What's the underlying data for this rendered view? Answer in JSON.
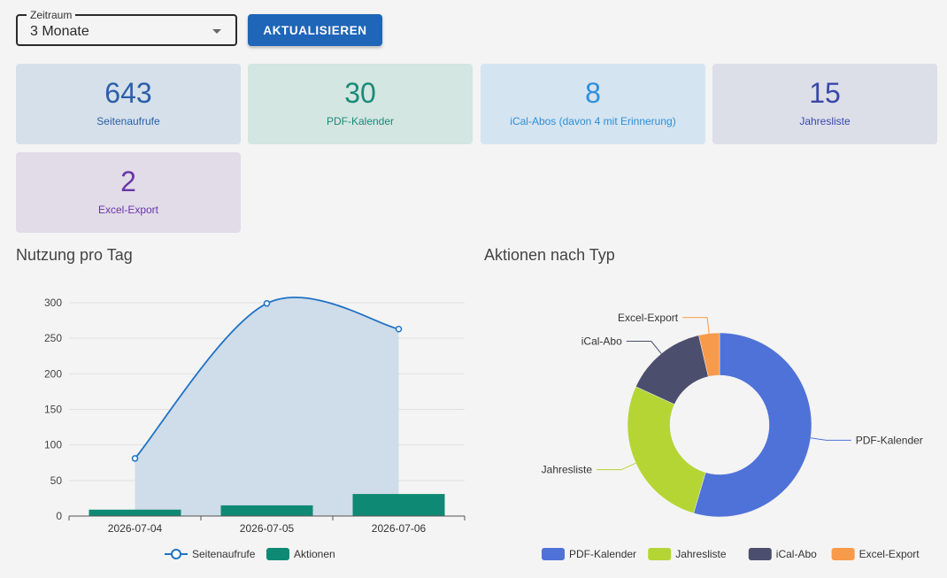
{
  "filter": {
    "legend": "Zeitraum",
    "value": "3 Monate",
    "refresh_label": "AKTUALISIEREN"
  },
  "stats": [
    {
      "value": "643",
      "label": "Seitenaufrufe",
      "color": "#2a5fa8",
      "bg": "#d6e0ea"
    },
    {
      "value": "30",
      "label": "PDF-Kalender",
      "color": "#1a8a78",
      "bg": "#d3e6e1"
    },
    {
      "value": "8",
      "label": "iCal-Abos (davon 4 mit Erinnerung)",
      "color": "#2d8fd8",
      "bg": "#d4e4f1"
    },
    {
      "value": "15",
      "label": "Jahresliste",
      "color": "#3a48a8",
      "bg": "#dcdfe8"
    },
    {
      "value": "2",
      "label": "Excel-Export",
      "color": "#6a35a8",
      "bg": "#e1dce8"
    }
  ],
  "daily_title": "Nutzung pro Tag",
  "type_title": "Aktionen nach Typ",
  "chart_data": [
    {
      "type": "line",
      "title": "Nutzung pro Tag",
      "categories": [
        "2026-07-04",
        "2026-07-05",
        "2026-07-06"
      ],
      "ylim": [
        0,
        300
      ],
      "yticks": [
        0,
        50,
        100,
        150,
        200,
        250,
        300
      ],
      "grid": true,
      "legend_position": "bottom",
      "series": [
        {
          "name": "Seitenaufrufe",
          "type": "area",
          "values": [
            81,
            299,
            263
          ],
          "color": "#1f72c4",
          "fill": "#cfdce9"
        },
        {
          "name": "Aktionen",
          "type": "bar",
          "values": [
            9,
            15,
            31
          ],
          "color": "#0e8a74"
        }
      ]
    },
    {
      "type": "pie",
      "title": "Aktionen nach Typ",
      "legend_position": "bottom",
      "labels": [
        "PDF-Kalender",
        "Jahresliste",
        "iCal-Abo",
        "Excel-Export"
      ],
      "values": [
        30,
        15,
        8,
        2
      ],
      "colors": [
        "#4f72d8",
        "#b5d534",
        "#4b4e6c",
        "#f79a4a"
      ]
    }
  ]
}
